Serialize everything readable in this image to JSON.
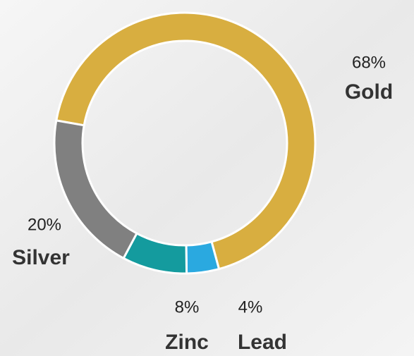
{
  "chart_data": {
    "type": "pie",
    "categories": [
      "Gold",
      "Lead",
      "Zinc",
      "Silver"
    ],
    "values": [
      68,
      4,
      8,
      20
    ],
    "value_labels": [
      "68%",
      "4%",
      "8%",
      "20%"
    ],
    "colors": [
      "#d8ae40",
      "#2aa9e0",
      "#149b9e",
      "#808080"
    ]
  }
}
